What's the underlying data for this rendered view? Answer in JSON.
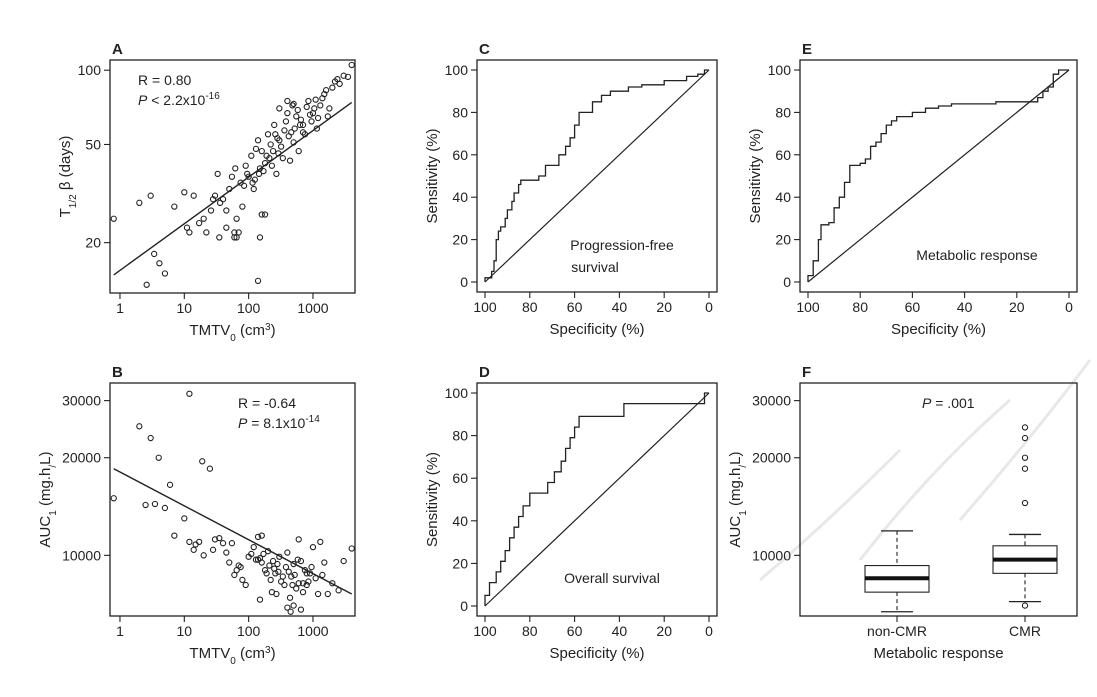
{
  "chart_data": [
    {
      "id": "A",
      "type": "scatter",
      "panel_label": "A",
      "xlabel": "TMTV₀ (cm³)",
      "ylabel": "T₁/₂ β (days)",
      "xscale": "log",
      "yscale": "log",
      "xlim": [
        0.7,
        4500
      ],
      "ylim": [
        12.5,
        110
      ],
      "xticks": [
        1,
        10,
        100,
        1000
      ],
      "xtick_labels": [
        "1",
        "10",
        "100",
        "1000"
      ],
      "yticks": [
        20,
        50,
        100
      ],
      "ytick_labels": [
        "20",
        "50",
        "100"
      ],
      "annotations": [
        "R = 0.80",
        "P < 2.2x10-16"
      ],
      "fit_line": {
        "x": [
          0.8,
          4000
        ],
        "y": [
          14.8,
          74
        ]
      },
      "points": {
        "x": [
          0.8,
          2,
          2.6,
          3,
          3.4,
          4.1,
          5,
          7,
          10,
          11,
          12,
          14,
          17,
          20,
          22,
          26,
          28,
          30,
          33,
          36,
          40,
          45,
          50,
          55,
          60,
          62,
          65,
          70,
          75,
          80,
          85,
          90,
          95,
          100,
          110,
          115,
          120,
          125,
          130,
          140,
          145,
          150,
          160,
          170,
          180,
          190,
          200,
          210,
          220,
          230,
          240,
          250,
          260,
          270,
          280,
          290,
          300,
          320,
          340,
          360,
          380,
          400,
          420,
          440,
          460,
          480,
          500,
          520,
          550,
          580,
          600,
          630,
          650,
          700,
          750,
          800,
          850,
          900,
          950,
          1000,
          1050,
          1100,
          1150,
          1200,
          1300,
          1400,
          1500,
          1600,
          1700,
          1800,
          2000,
          2200,
          2400,
          2600,
          3000,
          3500,
          4000,
          140,
          150,
          160,
          180,
          60,
          65,
          45,
          35,
          400,
          300,
          500,
          700
        ],
        "y": [
          25,
          29,
          13.5,
          31,
          18,
          16.5,
          15,
          28,
          32,
          23,
          22,
          31,
          24,
          25,
          22,
          27,
          30,
          31,
          38,
          29,
          30,
          27,
          33,
          37,
          21,
          40,
          25,
          22,
          35,
          28,
          34,
          41,
          38,
          37,
          45,
          35,
          33,
          36,
          48,
          52,
          38,
          40,
          47,
          39,
          42,
          45,
          55,
          44,
          50,
          41,
          47,
          60,
          55,
          38,
          53,
          46,
          52,
          49,
          44,
          57,
          62,
          67,
          54,
          43,
          56,
          72,
          51,
          58,
          65,
          69,
          47,
          60,
          63,
          56,
          55,
          71,
          75,
          66,
          62,
          67,
          70,
          76,
          58,
          64,
          72,
          77,
          80,
          83,
          65,
          70,
          85,
          90,
          92,
          88,
          95,
          94,
          105,
          14,
          21,
          26,
          26,
          22,
          21,
          23,
          21,
          75,
          70,
          73,
          60
        ]
      }
    },
    {
      "id": "B",
      "type": "scatter",
      "panel_label": "B",
      "xlabel": "TMTV₀ (cm³)",
      "ylabel": "AUC₁ (mg.h/L)",
      "xscale": "log",
      "yscale": "log",
      "xlim": [
        0.7,
        4500
      ],
      "ylim": [
        6500,
        34000
      ],
      "xticks": [
        1,
        10,
        100,
        1000
      ],
      "xtick_labels": [
        "1",
        "10",
        "100",
        "1000"
      ],
      "yticks": [
        10000,
        20000,
        30000
      ],
      "ytick_labels": [
        "10000",
        "20000",
        "30000"
      ],
      "annotations": [
        "R = -0.64",
        "P = 8.1x10-14"
      ],
      "fit_line": {
        "x": [
          0.8,
          4000
        ],
        "y": [
          18500,
          7600
        ]
      },
      "points": {
        "x": [
          0.8,
          2,
          2.5,
          3,
          3.5,
          4,
          5,
          6,
          7,
          10,
          12,
          14,
          15,
          17,
          19,
          20,
          25,
          28,
          30,
          35,
          40,
          45,
          50,
          55,
          60,
          65,
          70,
          75,
          80,
          90,
          100,
          110,
          120,
          130,
          140,
          150,
          160,
          170,
          180,
          190,
          200,
          210,
          220,
          230,
          240,
          250,
          260,
          270,
          280,
          290,
          300,
          320,
          340,
          360,
          380,
          400,
          420,
          440,
          460,
          480,
          500,
          520,
          550,
          580,
          600,
          650,
          700,
          750,
          800,
          850,
          900,
          950,
          1000,
          1100,
          1200,
          1300,
          1400,
          1500,
          1700,
          2000,
          2500,
          3000,
          4000,
          12,
          140,
          150,
          160,
          400,
          450,
          500,
          600,
          650,
          700,
          800
        ],
        "y": [
          15000,
          25000,
          14300,
          23000,
          14400,
          20000,
          14000,
          16500,
          11500,
          13000,
          31500,
          10400,
          10800,
          11000,
          19500,
          10000,
          18500,
          10400,
          11200,
          11300,
          10900,
          10200,
          9500,
          10900,
          8700,
          9000,
          9300,
          9200,
          8400,
          8100,
          9900,
          10100,
          10600,
          9700,
          11400,
          9800,
          9500,
          10100,
          9000,
          8800,
          10300,
          9300,
          8400,
          7700,
          9600,
          9100,
          8800,
          7600,
          9400,
          8900,
          9900,
          8300,
          8600,
          8100,
          9200,
          10200,
          8900,
          7400,
          8600,
          8100,
          9400,
          8700,
          7900,
          9700,
          8200,
          9600,
          7700,
          9000,
          8100,
          8300,
          8800,
          9200,
          10600,
          8500,
          7600,
          11000,
          8700,
          9500,
          7600,
          8200,
          7800,
          9600,
          10500,
          11000,
          9700,
          7300,
          11500,
          6900,
          6700,
          7000,
          11200,
          6800,
          8200,
          8800
        ]
      }
    },
    {
      "id": "C",
      "type": "line",
      "panel_label": "C",
      "xlabel": "Specificity (%)",
      "ylabel": "Sensitivity (%)",
      "xlim": [
        100,
        0
      ],
      "ylim": [
        0,
        100
      ],
      "xticks": [
        100,
        80,
        60,
        40,
        20,
        0
      ],
      "xtick_labels": [
        "100",
        "80",
        "60",
        "40",
        "20",
        "0"
      ],
      "yticks": [
        0,
        20,
        40,
        60,
        80,
        100
      ],
      "ytick_labels": [
        "0",
        "20",
        "40",
        "60",
        "80",
        "100"
      ],
      "annotations": [
        "Progression-free",
        "survival"
      ],
      "series": [
        {
          "specificity": [
            100,
            100,
            97,
            97,
            96,
            96,
            95,
            95,
            94,
            94,
            93,
            93,
            91,
            91,
            90,
            90,
            88,
            88,
            87,
            87,
            85,
            85,
            84,
            84,
            82,
            82,
            80,
            80,
            78,
            78,
            76,
            76,
            73,
            73,
            70,
            70,
            67,
            67,
            64,
            64,
            62,
            62,
            60,
            60,
            58,
            58,
            55,
            55,
            52,
            52,
            48,
            48,
            44,
            44,
            40,
            40,
            36,
            36,
            30,
            30,
            20,
            20,
            10,
            10,
            5,
            5,
            2,
            2,
            0
          ],
          "sensitivity": [
            0,
            2,
            2,
            5,
            5,
            10,
            10,
            20,
            20,
            24,
            24,
            26,
            26,
            30,
            30,
            34,
            34,
            38,
            38,
            42,
            42,
            46,
            46,
            48,
            48,
            48,
            48,
            48,
            48,
            48,
            48,
            50,
            50,
            55,
            55,
            55,
            55,
            60,
            60,
            64,
            64,
            68,
            68,
            74,
            74,
            80,
            80,
            80,
            80,
            85,
            85,
            88,
            88,
            90,
            90,
            90,
            90,
            92,
            92,
            93,
            93,
            95,
            95,
            97,
            97,
            98,
            98,
            100,
            100
          ]
        }
      ]
    },
    {
      "id": "D",
      "type": "line",
      "panel_label": "D",
      "xlabel": "Specificity (%)",
      "ylabel": "Sensitivity (%)",
      "xlim": [
        100,
        0
      ],
      "ylim": [
        0,
        100
      ],
      "xticks": [
        100,
        80,
        60,
        40,
        20,
        0
      ],
      "xtick_labels": [
        "100",
        "80",
        "60",
        "40",
        "20",
        "0"
      ],
      "yticks": [
        0,
        20,
        40,
        60,
        80,
        100
      ],
      "ytick_labels": [
        "0",
        "20",
        "40",
        "60",
        "80",
        "100"
      ],
      "annotations": [
        "Overall survival"
      ],
      "series": [
        {
          "specificity": [
            100,
            100,
            98,
            98,
            95,
            95,
            93,
            93,
            91,
            91,
            89,
            89,
            87,
            87,
            85,
            85,
            83,
            83,
            80,
            80,
            75,
            75,
            72,
            72,
            69,
            69,
            66,
            66,
            64,
            64,
            62,
            62,
            60,
            60,
            58,
            58,
            54,
            54,
            50,
            50,
            45,
            45,
            38,
            38,
            33,
            33,
            25,
            25,
            15,
            15,
            5,
            5,
            2,
            2,
            0
          ],
          "sensitivity": [
            0,
            5,
            5,
            11,
            11,
            16,
            16,
            21,
            21,
            26,
            26,
            32,
            32,
            37,
            37,
            42,
            42,
            47,
            47,
            53,
            53,
            53,
            53,
            58,
            58,
            63,
            63,
            68,
            68,
            74,
            74,
            79,
            79,
            84,
            84,
            89,
            89,
            89,
            89,
            89,
            89,
            89,
            89,
            95,
            95,
            95,
            95,
            95,
            95,
            95,
            95,
            95,
            95,
            100,
            100
          ]
        }
      ]
    },
    {
      "id": "E",
      "type": "line",
      "panel_label": "E",
      "xlabel": "Specificity (%)",
      "ylabel": "Sensitivity (%)",
      "xlim": [
        100,
        0
      ],
      "ylim": [
        0,
        100
      ],
      "xticks": [
        100,
        80,
        60,
        40,
        20,
        0
      ],
      "xtick_labels": [
        "100",
        "80",
        "60",
        "40",
        "20",
        "0"
      ],
      "yticks": [
        0,
        20,
        40,
        60,
        80,
        100
      ],
      "ytick_labels": [
        "0",
        "20",
        "40",
        "60",
        "80",
        "100"
      ],
      "annotations": [
        "Metabolic response"
      ],
      "series": [
        {
          "specificity": [
            100,
            100,
            98,
            98,
            96,
            96,
            95,
            95,
            92,
            92,
            90,
            90,
            88,
            88,
            86,
            86,
            84,
            84,
            82,
            82,
            80,
            80,
            78,
            78,
            76,
            76,
            74,
            74,
            72,
            72,
            70,
            70,
            68,
            68,
            66,
            66,
            64,
            64,
            60,
            60,
            55,
            55,
            50,
            50,
            45,
            45,
            40,
            40,
            34,
            34,
            28,
            28,
            20,
            20,
            12,
            12,
            10,
            10,
            8,
            8,
            6,
            6,
            4,
            4,
            0
          ],
          "sensitivity": [
            0,
            3,
            3,
            10,
            10,
            20,
            20,
            27,
            27,
            28,
            28,
            35,
            35,
            40,
            40,
            47,
            47,
            55,
            55,
            55,
            55,
            56,
            56,
            58,
            58,
            64,
            64,
            66,
            66,
            70,
            70,
            74,
            74,
            76,
            76,
            78,
            78,
            78,
            78,
            80,
            80,
            82,
            82,
            83,
            83,
            84,
            84,
            84,
            84,
            84,
            84,
            85,
            85,
            85,
            85,
            87,
            87,
            90,
            90,
            92,
            92,
            98,
            98,
            100,
            100
          ]
        }
      ]
    },
    {
      "id": "F",
      "type": "box",
      "panel_label": "F",
      "xlabel": "Metabolic response",
      "ylabel": "AUC₁ (mg.h/L)",
      "yscale": "log",
      "ylim": [
        6500,
        34000
      ],
      "yticks": [
        10000,
        20000,
        30000
      ],
      "ytick_labels": [
        "10000",
        "20000",
        "30000"
      ],
      "categories": [
        "non-CMR",
        "CMR"
      ],
      "annotations": [
        "P = .001"
      ],
      "boxes": [
        {
          "name": "non-CMR",
          "whisker_low": 6700,
          "q1": 7700,
          "median": 8500,
          "q3": 9300,
          "whisker_high": 11900,
          "outliers": []
        },
        {
          "name": "CMR",
          "whisker_low": 7200,
          "q1": 8800,
          "median": 9700,
          "q3": 10700,
          "whisker_high": 11600,
          "outliers": [
            7000,
            14500,
            18500,
            20000,
            23000,
            24800
          ]
        }
      ]
    }
  ]
}
